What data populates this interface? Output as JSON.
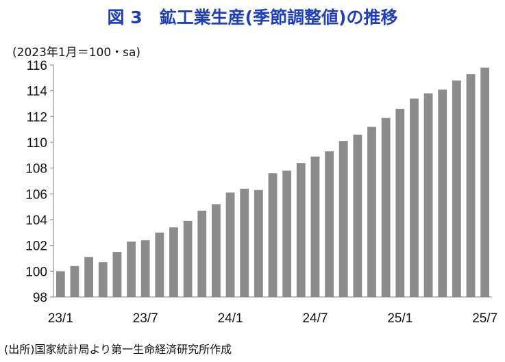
{
  "title": "図 3　鉱工業生産(季節調整値)の推移",
  "unit_note": "(2023年1月＝100・sa)",
  "source": "(出所)国家統計局より第一生命経済研究所作成",
  "colors": {
    "title": "#1f3fbf",
    "bar": "#8c8c8c"
  },
  "chart_data": {
    "type": "bar",
    "title": "図 3　鉱工業生産(季節調整値)の推移",
    "xlabel": "",
    "ylabel": "",
    "categories": [
      "23/1",
      "23/2",
      "23/3",
      "23/4",
      "23/5",
      "23/6",
      "23/7",
      "23/8",
      "23/9",
      "23/10",
      "23/11",
      "23/12",
      "24/1",
      "24/2",
      "24/3",
      "24/4",
      "24/5",
      "24/6",
      "24/7",
      "24/8",
      "24/9",
      "24/10",
      "24/11",
      "24/12",
      "25/1",
      "25/2",
      "25/3",
      "25/4",
      "25/5",
      "25/6",
      "25/7"
    ],
    "x_tick_labels": [
      "23/1",
      "23/7",
      "24/1",
      "24/7",
      "25/1",
      "25/7"
    ],
    "values": [
      100.0,
      100.4,
      101.1,
      100.7,
      101.5,
      102.3,
      102.4,
      103.0,
      103.4,
      103.9,
      104.7,
      105.2,
      106.1,
      106.4,
      106.3,
      107.6,
      107.8,
      108.4,
      108.9,
      109.3,
      110.1,
      110.6,
      111.2,
      111.9,
      112.6,
      113.4,
      113.8,
      114.1,
      114.8,
      115.3,
      115.8
    ],
    "ylim": [
      98,
      116
    ],
    "yticks": [
      98,
      100,
      102,
      104,
      106,
      108,
      110,
      112,
      114,
      116
    ],
    "grid": false,
    "legend": "none"
  }
}
